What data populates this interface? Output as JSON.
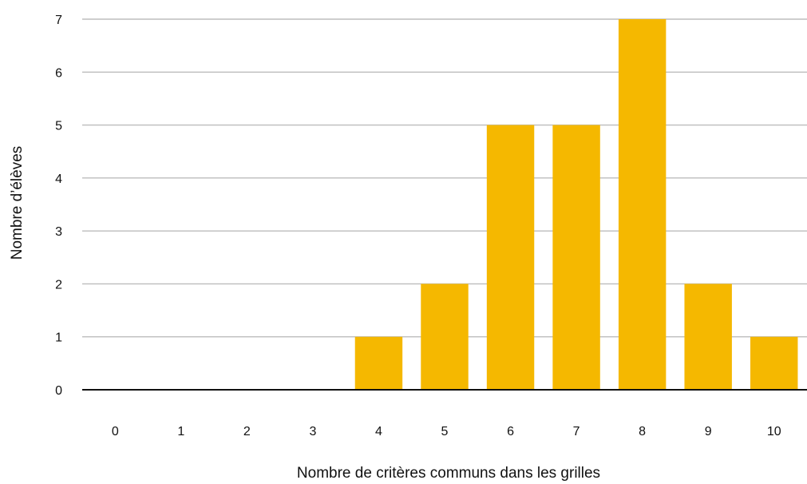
{
  "chart_data": {
    "type": "bar",
    "categories": [
      "0",
      "1",
      "2",
      "3",
      "4",
      "5",
      "6",
      "7",
      "8",
      "9",
      "10"
    ],
    "values": [
      0,
      0,
      0,
      0,
      1,
      2,
      5,
      5,
      7,
      2,
      1
    ],
    "title": "",
    "xlabel": "Nombre de critères communs dans les grilles",
    "ylabel": "Nombre d’élèves",
    "ylim": [
      0,
      7
    ],
    "yticks": [
      0,
      1,
      2,
      3,
      4,
      5,
      6,
      7
    ],
    "grid": true,
    "legend": "none",
    "bar_color": "#F5B800",
    "grid_color": "#bdbdbd",
    "axis_color": "#111111"
  }
}
